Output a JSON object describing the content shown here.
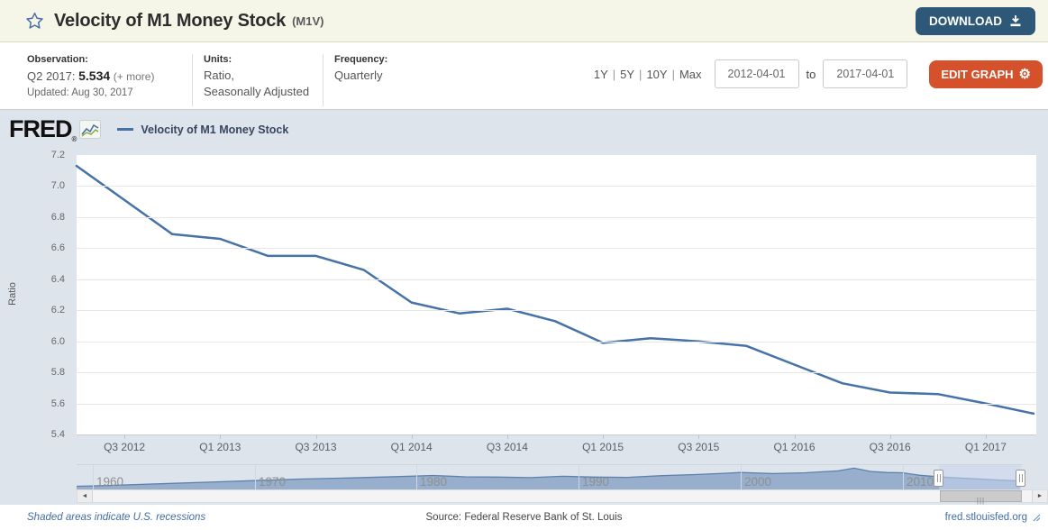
{
  "topbar": {
    "title": "Velocity of M1 Money Stock",
    "series_id": "(M1V)",
    "download_label": "DOWNLOAD"
  },
  "subheader": {
    "observation_label": "Observation:",
    "observation_period": "Q2 2017:",
    "observation_value": "5.534",
    "observation_more": "(+ more)",
    "updated": "Updated: Aug 30, 2017",
    "units_label": "Units:",
    "units_line1": "Ratio,",
    "units_line2": "Seasonally Adjusted",
    "frequency_label": "Frequency:",
    "frequency_value": "Quarterly",
    "range_presets": [
      "1Y",
      "5Y",
      "10Y",
      "Max"
    ],
    "range_separator": "|",
    "date_start": "2012-04-01",
    "date_to_label": "to",
    "date_end": "2017-04-01",
    "edit_graph_label": "EDIT GRAPH",
    "edit_graph_icon": "⚙"
  },
  "chart_header": {
    "logo": "FRED",
    "registered": "®",
    "legend_label": "Velocity of M1 Money Stock"
  },
  "chart_data": {
    "type": "line",
    "title": "Velocity of M1 Money Stock",
    "xlabel": "",
    "ylabel": "Ratio",
    "ylim": [
      5.4,
      7.2
    ],
    "grid": true,
    "legend_position": "top-left",
    "line_color": "#4572a7",
    "y_ticks": [
      7.2,
      7.0,
      6.8,
      6.6,
      6.4,
      6.2,
      6.0,
      5.8,
      5.6,
      5.4
    ],
    "x_tick_labels": [
      "Q3 2012",
      "Q1 2013",
      "Q3 2013",
      "Q1 2014",
      "Q3 2014",
      "Q1 2015",
      "Q3 2015",
      "Q1 2016",
      "Q3 2016",
      "Q1 2017"
    ],
    "categories": [
      "2012 Q2",
      "2012 Q3",
      "2012 Q4",
      "2013 Q1",
      "2013 Q2",
      "2013 Q3",
      "2013 Q4",
      "2014 Q1",
      "2014 Q2",
      "2014 Q3",
      "2014 Q4",
      "2015 Q1",
      "2015 Q2",
      "2015 Q3",
      "2015 Q4",
      "2016 Q1",
      "2016 Q2",
      "2016 Q3",
      "2016 Q4",
      "2017 Q1",
      "2017 Q2"
    ],
    "values": [
      7.13,
      6.91,
      6.69,
      6.66,
      6.55,
      6.55,
      6.46,
      6.25,
      6.18,
      6.21,
      6.13,
      5.99,
      6.02,
      6.0,
      5.97,
      5.85,
      5.73,
      5.67,
      5.66,
      5.6,
      5.534
    ]
  },
  "minimap": {
    "type": "area",
    "description": "full M1V history navigator",
    "years": [
      1959,
      1961,
      1964,
      1967,
      1970,
      1973,
      1976,
      1979,
      1981,
      1983,
      1985,
      1987,
      1989,
      1991,
      1993,
      1995,
      1997,
      1999,
      2000,
      2002,
      2004,
      2006,
      2007,
      2008,
      2009,
      2010,
      2011,
      2012,
      2013,
      2014,
      2015,
      2016,
      2017.25
    ],
    "values": [
      3.5,
      3.8,
      4.4,
      5.0,
      5.6,
      6.2,
      6.6,
      7.1,
      7.5,
      7.0,
      6.9,
      6.7,
      7.2,
      6.9,
      6.8,
      7.4,
      7.8,
      8.3,
      8.6,
      8.2,
      8.5,
      9.2,
      10.2,
      9.0,
      8.6,
      8.5,
      7.6,
      7.1,
      6.7,
      6.4,
      6.1,
      5.8,
      5.5
    ],
    "tick_years": [
      1960,
      1970,
      1980,
      1990,
      2000,
      2010
    ],
    "selection": {
      "start_year": 2012.25,
      "end_year": 2017.25
    },
    "fill_color": "#8ba6c7",
    "line_color": "#5d81ab"
  },
  "scrollbar": {
    "left_arrow": "◄",
    "right_arrow": "►",
    "grip": "|||"
  },
  "footer": {
    "left": "Shaded areas indicate U.S. recessions",
    "center": "Source: Federal Reserve Bank of St. Louis",
    "right": "fred.stlouisfed.org"
  },
  "colors": {
    "topbar_bg": "#f5f5e8",
    "download_bg": "#2e5878",
    "edit_graph_bg": "#d4512c",
    "chart_bg": "#dde4eb",
    "line": "#4572a7",
    "selection_bg": "#c9d6ee",
    "link": "#3f6ca6"
  }
}
